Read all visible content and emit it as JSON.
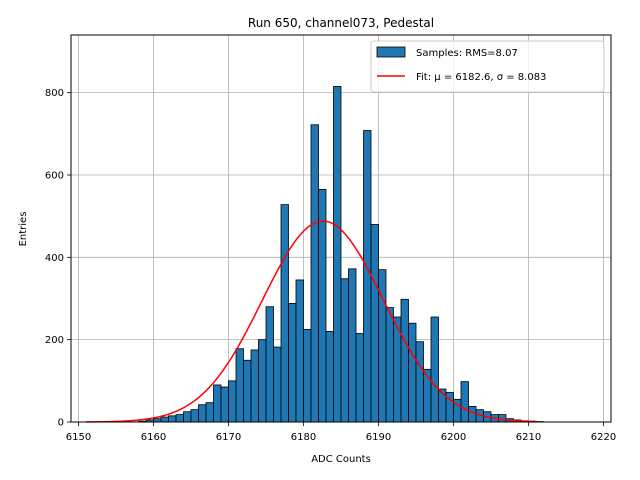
{
  "chart_data": {
    "type": "bar",
    "title": "Run 650, channel073, Pedestal",
    "xlabel": "ADC Counts",
    "ylabel": "Entries",
    "xlim": [
      6149,
      6221
    ],
    "ylim": [
      0,
      940
    ],
    "xticks": [
      6150,
      6160,
      6170,
      6180,
      6190,
      6200,
      6210,
      6220
    ],
    "yticks": [
      0,
      200,
      400,
      600,
      800
    ],
    "grid": true,
    "legend_position": "upper-right",
    "histogram": {
      "name": "Samples: RMS=8.07",
      "color": "#1f77b4",
      "bin_start": 6151,
      "bin_width": 1,
      "counts": [
        0,
        0,
        0,
        0,
        0,
        0,
        0,
        2,
        5,
        8,
        12,
        15,
        18,
        25,
        30,
        42,
        47,
        90,
        85,
        100,
        178,
        150,
        175,
        200,
        280,
        182,
        528,
        288,
        345,
        225,
        722,
        565,
        220,
        815,
        348,
        372,
        215,
        708,
        480,
        370,
        278,
        255,
        298,
        240,
        195,
        128,
        255,
        80,
        72,
        55,
        98,
        38,
        30,
        25,
        18,
        18,
        8,
        5,
        3,
        2,
        1,
        0,
        0,
        0,
        0,
        0
      ]
    },
    "fit": {
      "name": "Fit: μ = 6182.6, σ = 8.083",
      "color": "#ff0000",
      "mu": 6182.6,
      "sigma": 8.083,
      "amplitude": 488,
      "x_range": [
        6151,
        6211
      ]
    }
  }
}
